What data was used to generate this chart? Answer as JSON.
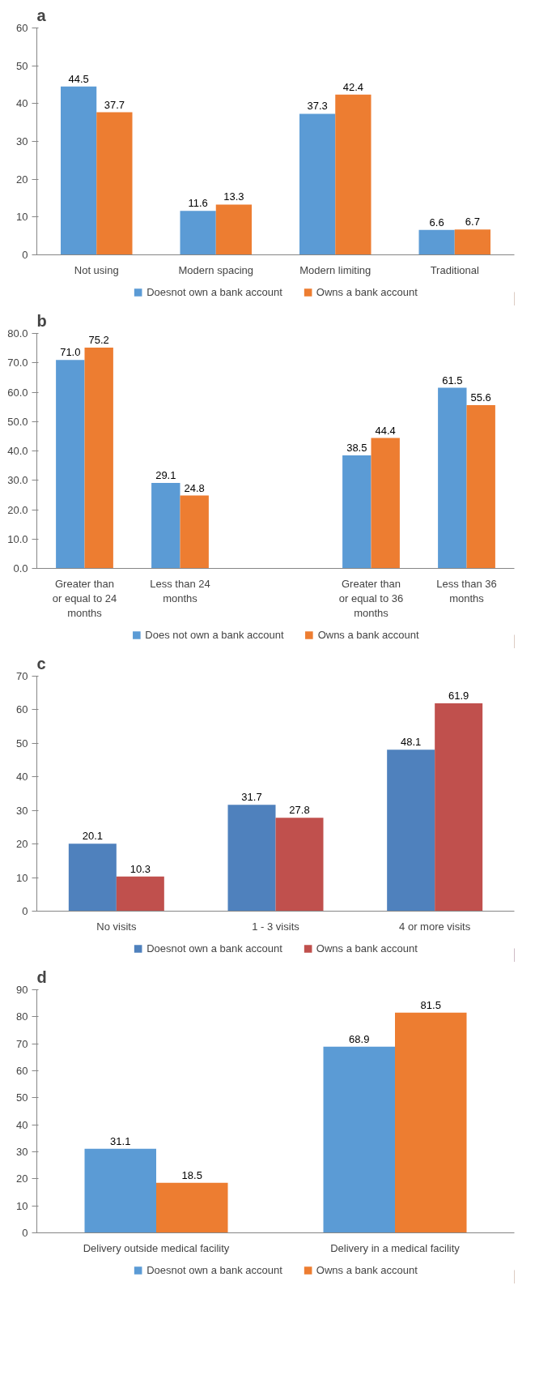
{
  "chart_data": [
    {
      "type": "bar",
      "title": "a",
      "categories": [
        "Not using",
        "Modern spacing",
        "Modern limiting",
        "Traditional"
      ],
      "series": [
        {
          "name": "Doesnot own a bank account",
          "color": "#5b9bd5",
          "values": [
            44.5,
            11.6,
            37.3,
            6.6
          ],
          "value_labels": [
            "44.5",
            "11.6",
            "37.3",
            "6.6"
          ]
        },
        {
          "name": "Owns a bank account",
          "color": "#ed7d31",
          "values": [
            37.7,
            13.3,
            42.4,
            6.7
          ],
          "value_labels": [
            "37.7",
            "13.3",
            "42.4",
            "6.7"
          ]
        }
      ],
      "ylim": [
        0,
        60
      ],
      "yticks": [
        0,
        10,
        20,
        30,
        40,
        50,
        60
      ],
      "grid": false,
      "legend": "bottom"
    },
    {
      "type": "bar",
      "title": "b",
      "categories": [
        "Greater than or equal to 24 months",
        "Less than 24 months",
        null,
        "Greater than or equal to 36 months",
        "Less than 36 months"
      ],
      "series": [
        {
          "name": "Does not own a bank account",
          "color": "#5b9bd5",
          "values": [
            71.0,
            29.1,
            null,
            38.5,
            61.5
          ],
          "value_labels": [
            "71.0",
            "29.1",
            null,
            "38.5",
            "61.5"
          ]
        },
        {
          "name": "Owns a bank account",
          "color": "#ed7d31",
          "values": [
            75.2,
            24.8,
            null,
            44.4,
            55.6
          ],
          "value_labels": [
            "75.2",
            "24.8",
            null,
            "44.4",
            "55.6"
          ]
        }
      ],
      "ylim": [
        0,
        80
      ],
      "yticks": [
        {
          "value": 0,
          "label": "0.0"
        },
        {
          "value": 10,
          "label": "10.0"
        },
        {
          "value": 20,
          "label": "20.0"
        },
        {
          "value": 30,
          "label": "30.0"
        },
        {
          "value": 40,
          "label": "40.0"
        },
        {
          "value": 50,
          "label": "50.0"
        },
        {
          "value": 60,
          "label": "60.0"
        },
        {
          "value": 70,
          "label": "70.0"
        },
        {
          "value": 80,
          "label": "80.0"
        }
      ],
      "grid": false,
      "legend": "bottom"
    },
    {
      "type": "bar",
      "title": "c",
      "categories": [
        "No visits",
        "1 - 3 visits",
        "4 or more visits"
      ],
      "series": [
        {
          "name": "Doesnot own a bank account",
          "color": "#4f81bd",
          "values": [
            20.1,
            31.7,
            48.1
          ],
          "value_labels": [
            "20.1",
            "31.7",
            "48.1"
          ]
        },
        {
          "name": "Owns a bank account",
          "color": "#c0504d",
          "values": [
            10.3,
            27.8,
            61.9
          ],
          "value_labels": [
            "10.3",
            "27.8",
            "61.9"
          ]
        }
      ],
      "ylim": [
        0,
        70
      ],
      "yticks": [
        0,
        10,
        20,
        30,
        40,
        50,
        60,
        70
      ],
      "grid": false,
      "legend": "bottom"
    },
    {
      "type": "bar",
      "title": "d",
      "categories": [
        "Delivery outside medical facility",
        "Delivery in a medical facility"
      ],
      "series": [
        {
          "name": "Doesnot own a bank account",
          "color": "#5b9bd5",
          "values": [
            31.1,
            68.9
          ],
          "value_labels": [
            "31.1",
            "68.9"
          ]
        },
        {
          "name": "Owns a bank account",
          "color": "#ed7d31",
          "values": [
            18.5,
            81.5
          ],
          "value_labels": [
            "18.5",
            "81.5"
          ]
        }
      ],
      "ylim": [
        0,
        90
      ],
      "yticks": [
        0,
        10,
        20,
        30,
        40,
        50,
        60,
        70,
        80,
        90
      ],
      "grid": false,
      "legend": "bottom"
    }
  ]
}
